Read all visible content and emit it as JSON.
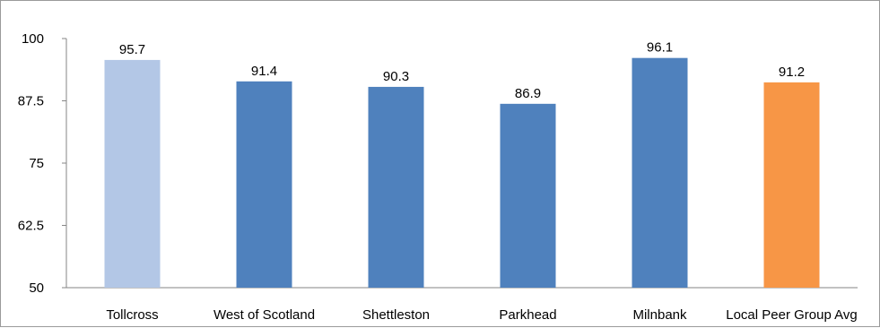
{
  "chart_data": {
    "type": "bar",
    "title": "",
    "xlabel": "",
    "ylabel": "",
    "categories": [
      "Tollcross",
      "West of Scotland",
      "Shettleston",
      "Parkhead",
      "Milnbank",
      "Local Peer Group Avg"
    ],
    "values": [
      95.7,
      91.4,
      90.3,
      86.9,
      96.1,
      91.2
    ],
    "value_labels": [
      "95.7",
      "91.4",
      "90.3",
      "86.9",
      "96.1",
      "91.2"
    ],
    "bar_colors": [
      "#b3c7e6",
      "#4f81bd",
      "#4f81bd",
      "#4f81bd",
      "#4f81bd",
      "#f79646"
    ],
    "ylim": [
      50,
      100
    ],
    "yticks": [
      50,
      62.5,
      75,
      87.5,
      100
    ],
    "ytick_labels": [
      "50",
      "62.5",
      "75",
      "87.5",
      "100"
    ],
    "grid": false,
    "legend": "none"
  }
}
